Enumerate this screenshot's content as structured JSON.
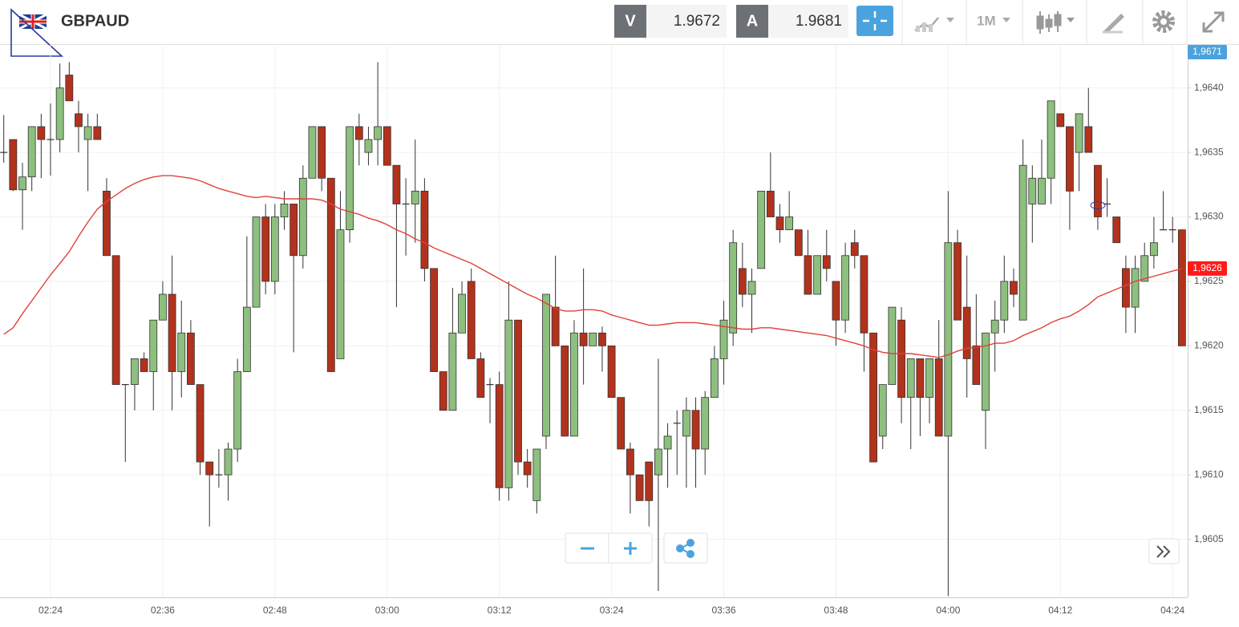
{
  "toolbar": {
    "symbol": "GBPAUD",
    "bid_label": "V",
    "bid": 1.9672,
    "ask_label": "A",
    "ask": 1.9681,
    "timeframe": "1M"
  },
  "chart_data": {
    "type": "candlestick",
    "categories": [
      null,
      null,
      null,
      null,
      null,
      "02:24",
      null,
      null,
      null,
      null,
      null,
      null,
      null,
      null,
      null,
      null,
      null,
      "02:36",
      null,
      null,
      null,
      null,
      null,
      null,
      null,
      null,
      null,
      null,
      null,
      "02:48",
      null,
      null,
      null,
      null,
      null,
      null,
      null,
      null,
      null,
      null,
      null,
      "03:00",
      null,
      null,
      null,
      null,
      null,
      null,
      null,
      null,
      null,
      null,
      null,
      "03:12",
      null,
      null,
      null,
      null,
      null,
      null,
      null,
      null,
      null,
      null,
      null,
      "03:24",
      null,
      null,
      null,
      null,
      null,
      null,
      null,
      null,
      null,
      null,
      null,
      "03:36",
      null,
      null,
      null,
      null,
      null,
      null,
      null,
      null,
      null,
      null,
      null,
      "03:48",
      null,
      null,
      null,
      null,
      null,
      null,
      null,
      null,
      null,
      null,
      null,
      "04:00",
      null,
      null,
      null,
      null,
      null,
      null,
      null,
      null,
      null,
      null,
      null,
      "04:12",
      null,
      null,
      null,
      null,
      null,
      null,
      null,
      null,
      null,
      null,
      null,
      "04:24",
      null
    ],
    "open": [
      1.9635,
      1.9636,
      1.96321,
      1.96331,
      1.9637,
      1.9636,
      1.9636,
      1.9641,
      1.9638,
      1.9636,
      1.9637,
      1.9632,
      1.9627,
      1.9617,
      1.9617,
      1.9619,
      1.9618,
      1.9622,
      1.9624,
      1.9618,
      1.9621,
      1.9617,
      1.9611,
      1.961,
      1.961,
      1.9612,
      1.9618,
      1.9623,
      1.963,
      1.9625,
      1.963,
      1.9631,
      1.9627,
      1.9633,
      1.9637,
      1.9633,
      1.9619,
      1.9629,
      1.9637,
      1.9635,
      1.9636,
      1.9637,
      1.9634,
      1.9631,
      1.9631,
      1.9632,
      1.9626,
      1.9618,
      1.9615,
      1.9621,
      1.9625,
      1.9619,
      1.9617,
      1.9617,
      1.9609,
      1.9622,
      1.9611,
      1.9608,
      1.9613,
      1.9623,
      1.962,
      1.9613,
      1.9621,
      1.962,
      1.9621,
      1.962,
      1.9616,
      1.9612,
      1.961,
      1.9611,
      1.961,
      1.9612,
      1.9614,
      1.9613,
      1.9615,
      1.9612,
      1.9616,
      1.9619,
      1.9621,
      1.9626,
      1.9624,
      1.9626,
      1.9632,
      1.963,
      1.9629,
      1.9629,
      1.9627,
      1.9624,
      1.9627,
      1.9625,
      1.9622,
      1.9628,
      1.9627,
      1.9621,
      1.9613,
      1.9617,
      1.9622,
      1.9616,
      1.9619,
      1.9616,
      1.9619,
      1.9613,
      1.9628,
      1.9623,
      1.962,
      1.9615,
      1.9621,
      1.9622,
      1.9625,
      1.9622,
      1.9631,
      1.9631,
      1.9633,
      1.9638,
      1.9637,
      1.9635,
      1.9637,
      1.9634,
      1.9631,
      1.963,
      1.9626,
      1.9623,
      1.9625,
      1.9627,
      1.9629,
      1.9629,
      1.9629
    ],
    "high": [
      1.96379,
      1.9636,
      1.96342,
      1.9637,
      1.9638,
      1.96388,
      1.96419,
      1.9642,
      1.9639,
      1.9638,
      1.9638,
      1.9633,
      1.9627,
      1.9617,
      1.9619,
      1.96195,
      1.9622,
      1.9625,
      1.9627,
      1.96235,
      1.9622,
      1.9617,
      1.9611,
      1.9612,
      1.96125,
      1.9619,
      1.96285,
      1.963,
      1.9631,
      1.9631,
      1.9632,
      1.9631,
      1.9634,
      1.9637,
      1.9637,
      1.9633,
      1.9632,
      1.9637,
      1.9638,
      1.9637,
      1.9642,
      1.9637,
      1.9634,
      1.9633,
      1.9636,
      1.9633,
      1.9626,
      1.9618,
      1.96245,
      1.9625,
      1.9626,
      1.96195,
      1.96175,
      1.9618,
      1.9625,
      1.9622,
      1.9612,
      1.9612,
      1.9624,
      1.9627,
      1.962,
      1.9622,
      1.9626,
      1.9621,
      1.96215,
      1.962,
      1.9616,
      1.96125,
      1.961,
      1.9611,
      1.9619,
      1.9614,
      1.9615,
      1.9616,
      1.9616,
      1.96165,
      1.962,
      1.96235,
      1.9629,
      1.9628,
      1.9626,
      1.9632,
      1.9635,
      1.9631,
      1.9632,
      1.9629,
      1.9629,
      1.9627,
      1.9629,
      1.9625,
      1.9628,
      1.9629,
      1.9627,
      1.9621,
      1.9617,
      1.9623,
      1.9623,
      1.9619,
      1.9619,
      1.9619,
      1.9622,
      1.9632,
      1.9629,
      1.9627,
      1.9624,
      1.9621,
      1.96235,
      1.9627,
      1.9626,
      1.9636,
      1.9634,
      1.9636,
      1.9639,
      1.9638,
      1.9637,
      1.9638,
      1.964,
      1.9634,
      1.9633,
      1.963,
      1.9627,
      1.9627,
      1.9628,
      1.963,
      1.9632,
      1.963,
      1.9629
    ],
    "low": [
      1.96342,
      1.9632,
      1.9629,
      1.9632,
      1.9633,
      1.96332,
      1.9635,
      1.9639,
      1.9635,
      1.9632,
      1.9636,
      1.9627,
      1.9617,
      1.9611,
      1.9615,
      1.9618,
      1.9615,
      1.9622,
      1.9615,
      1.9616,
      1.9617,
      1.961,
      1.9606,
      1.9609,
      1.9608,
      1.9611,
      1.9618,
      1.9623,
      1.9624,
      1.9624,
      1.9629,
      1.96195,
      1.9626,
      1.9633,
      1.9632,
      1.9618,
      1.9619,
      1.9628,
      1.9634,
      1.9634,
      1.9634,
      1.9634,
      1.9623,
      1.9627,
      1.9628,
      1.9625,
      1.9618,
      1.9615,
      1.9615,
      1.9621,
      1.9619,
      1.9616,
      1.9614,
      1.9608,
      1.9608,
      1.961,
      1.9609,
      1.9607,
      1.9612,
      1.962,
      1.9613,
      1.9613,
      1.9617,
      1.962,
      1.9618,
      1.9616,
      1.9612,
      1.9607,
      1.9608,
      1.9606,
      1.9601,
      1.9609,
      1.961,
      1.9609,
      1.9609,
      1.961,
      1.9616,
      1.9617,
      1.962,
      1.9623,
      1.9621,
      1.9626,
      1.963,
      1.9628,
      1.9629,
      1.9627,
      1.9624,
      1.9624,
      1.9625,
      1.962,
      1.9621,
      1.9626,
      1.9618,
      1.9611,
      1.9612,
      1.9617,
      1.9614,
      1.9612,
      1.9613,
      1.9614,
      1.9613,
      1.96006,
      1.9622,
      1.9616,
      1.9617,
      1.9612,
      1.9618,
      1.9621,
      1.9623,
      1.9622,
      1.9628,
      1.9631,
      1.9631,
      1.9637,
      1.9629,
      1.9632,
      1.9635,
      1.9629,
      1.963,
      1.9628,
      1.9621,
      1.9621,
      1.9625,
      1.9626,
      1.9629,
      1.9628,
      1.962
    ],
    "close": [
      1.9635,
      1.96321,
      1.96331,
      1.9637,
      1.9636,
      1.9636,
      1.964,
      1.9639,
      1.9637,
      1.9637,
      1.9636,
      1.9627,
      1.9617,
      1.9617,
      1.9619,
      1.9618,
      1.9622,
      1.9624,
      1.9618,
      1.9621,
      1.9617,
      1.9611,
      1.961,
      1.961,
      1.9612,
      1.9618,
      1.9623,
      1.963,
      1.9625,
      1.963,
      1.9631,
      1.9627,
      1.9633,
      1.9637,
      1.9633,
      1.9618,
      1.9629,
      1.9637,
      1.9636,
      1.9636,
      1.9637,
      1.9634,
      1.9631,
      1.9631,
      1.9632,
      1.9626,
      1.9618,
      1.9615,
      1.9621,
      1.9624,
      1.9619,
      1.9616,
      1.9617,
      1.9609,
      1.9622,
      1.9611,
      1.961,
      1.9612,
      1.9624,
      1.962,
      1.9613,
      1.9621,
      1.962,
      1.9621,
      1.962,
      1.9616,
      1.9612,
      1.961,
      1.9608,
      1.9608,
      1.9612,
      1.9613,
      1.9614,
      1.9615,
      1.9612,
      1.9616,
      1.9619,
      1.9622,
      1.9628,
      1.9624,
      1.9625,
      1.9632,
      1.963,
      1.9629,
      1.963,
      1.9627,
      1.9624,
      1.9627,
      1.9626,
      1.9622,
      1.9627,
      1.9627,
      1.9621,
      1.9611,
      1.9617,
      1.9623,
      1.9616,
      1.9619,
      1.9616,
      1.9619,
      1.9613,
      1.9628,
      1.9622,
      1.9619,
      1.9617,
      1.9621,
      1.9622,
      1.9625,
      1.9624,
      1.9634,
      1.9633,
      1.9633,
      1.9639,
      1.9637,
      1.9632,
      1.9638,
      1.9635,
      1.963,
      1.9631,
      1.9628,
      1.9623,
      1.9626,
      1.9627,
      1.9628,
      1.9629,
      1.9629,
      1.962
    ],
    "up_color": "#8dbf7e",
    "down_color": "#b2321c",
    "moving_average": {
      "color": "#e0413a",
      "values": [
        1.96209,
        1.96214,
        1.96225,
        1.96235,
        1.96245,
        1.96255,
        1.96264,
        1.96273,
        1.96285,
        1.96296,
        1.96306,
        1.96312,
        1.96317,
        1.96322,
        1.96326,
        1.96329,
        1.96331,
        1.96332,
        1.96332,
        1.96331,
        1.9633,
        1.96328,
        1.96325,
        1.96322,
        1.9632,
        1.96318,
        1.96316,
        1.96315,
        1.96316,
        1.96315,
        1.96314,
        1.96314,
        1.96314,
        1.96314,
        1.96313,
        1.9631,
        1.96306,
        1.96304,
        1.96302,
        1.96299,
        1.96297,
        1.96294,
        1.9629,
        1.96287,
        1.96283,
        1.9628,
        1.96276,
        1.96273,
        1.9627,
        1.96267,
        1.96264,
        1.9626,
        1.96256,
        1.96252,
        1.96248,
        1.96244,
        1.9624,
        1.96237,
        1.96233,
        1.96229,
        1.96227,
        1.96227,
        1.96228,
        1.96228,
        1.96227,
        1.96224,
        1.96222,
        1.9622,
        1.96218,
        1.96216,
        1.96216,
        1.96217,
        1.96218,
        1.96218,
        1.96218,
        1.96217,
        1.96216,
        1.96215,
        1.96214,
        1.96213,
        1.96213,
        1.96214,
        1.96214,
        1.96213,
        1.96212,
        1.96211,
        1.9621,
        1.96209,
        1.96208,
        1.96206,
        1.96204,
        1.96202,
        1.962,
        1.96197,
        1.96195,
        1.96194,
        1.96194,
        1.96194,
        1.96193,
        1.96192,
        1.96191,
        1.96193,
        1.96196,
        1.96198,
        1.96199,
        1.962,
        1.96202,
        1.96202,
        1.96204,
        1.96208,
        1.96211,
        1.96214,
        1.96218,
        1.96221,
        1.96223,
        1.96227,
        1.96232,
        1.96238,
        1.96241,
        1.96244,
        1.96247,
        1.9625,
        1.96252,
        1.96254,
        1.96256,
        1.96258,
        1.9626
      ]
    },
    "ylim": [
      1.96005,
      1.96434
    ],
    "yticks": [
      {
        "value": 1.9605,
        "label": "1,9605"
      },
      {
        "value": 1.961,
        "label": "1,9610"
      },
      {
        "value": 1.9615,
        "label": "1,9615"
      },
      {
        "value": 1.962,
        "label": "1,9620"
      },
      {
        "value": 1.9625,
        "label": "1,9625"
      },
      {
        "value": 1.963,
        "label": "1,9630"
      },
      {
        "value": 1.9635,
        "label": "1,9635"
      },
      {
        "value": 1.964,
        "label": "1,9640"
      }
    ],
    "price_markers": [
      {
        "value": 1.9671,
        "label": "1,9671",
        "color": "#4aa3df"
      },
      {
        "value": 1.9626,
        "label": "1,9626",
        "color": "#ff1a1a"
      }
    ],
    "grid": true
  }
}
